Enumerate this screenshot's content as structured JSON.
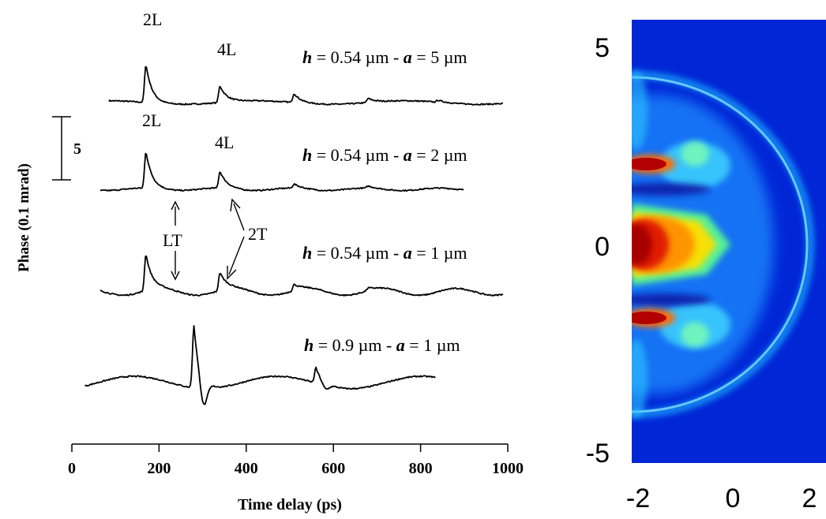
{
  "chart_data": [
    {
      "type": "line",
      "xlabel": "Time delay (ps)",
      "ylabel": "Phase (0.1 mrad)",
      "xlim": [
        0,
        1000
      ],
      "xticks": [
        "0",
        "200",
        "400",
        "600",
        "800",
        "1000"
      ],
      "scale_bar_label": "5",
      "scale_bar_value": 5,
      "series": [
        {
          "label": "h = 0.54 µm - a = 5 µm",
          "h": "0.54 µm",
          "a": "5 µm",
          "x_range": [
            85,
            990
          ],
          "peaks": [
            {
              "x": 170,
              "amp": 5.5,
              "label": "2L"
            },
            {
              "x": 340,
              "amp": 2.4,
              "label": "4L"
            },
            {
              "x": 510,
              "amp": 1.3
            },
            {
              "x": 680,
              "amp": 0.6
            },
            {
              "x": 840,
              "amp": 0.3
            }
          ]
        },
        {
          "label": "h = 0.54 µm - a = 2 µm",
          "h": "0.54 µm",
          "a": "2 µm",
          "x_range": [
            65,
            900
          ],
          "peaks": [
            {
              "x": 170,
              "amp": 5.3,
              "label": "2L"
            },
            {
              "x": 340,
              "amp": 2.4,
              "label": "4L"
            },
            {
              "x": 510,
              "amp": 0.6
            },
            {
              "x": 680,
              "amp": 0.3
            }
          ]
        },
        {
          "label": "h = 0.54 µm - a = 1 µm",
          "h": "0.54 µm",
          "a": "1 µm",
          "x_range": [
            65,
            990
          ],
          "peaks": [
            {
              "x": 170,
              "amp": 5.3
            },
            {
              "x": 340,
              "amp": 2.6
            },
            {
              "x": 510,
              "amp": 0.9
            },
            {
              "x": 680,
              "amp": 0.4
            }
          ],
          "annotations": [
            {
              "text": "LT",
              "x": 240
            },
            {
              "text": "2T",
              "x": 355
            }
          ]
        },
        {
          "label": "h = 0.9 µm - a = 1 µm",
          "h": "0.9 µm",
          "a": "1 µm",
          "x_range": [
            30,
            835
          ],
          "peaks": [
            {
              "x": 280,
              "amp": 9.0
            },
            {
              "x": 560,
              "amp": 2.2
            }
          ]
        }
      ]
    },
    {
      "type": "heatmap",
      "xlim": [
        -2,
        2
      ],
      "ylim": [
        -6,
        6
      ],
      "xticks": [
        "-2",
        "0",
        "2"
      ],
      "yticks": [
        "5",
        "0",
        "-5"
      ],
      "colormap": "jet",
      "colors": {
        "background": "#0026d6",
        "core": "#a80000",
        "hot": "#ff2a00",
        "warm": "#ffe000",
        "mid": "#5dff8c",
        "cool": "#1fb7ff"
      }
    }
  ]
}
